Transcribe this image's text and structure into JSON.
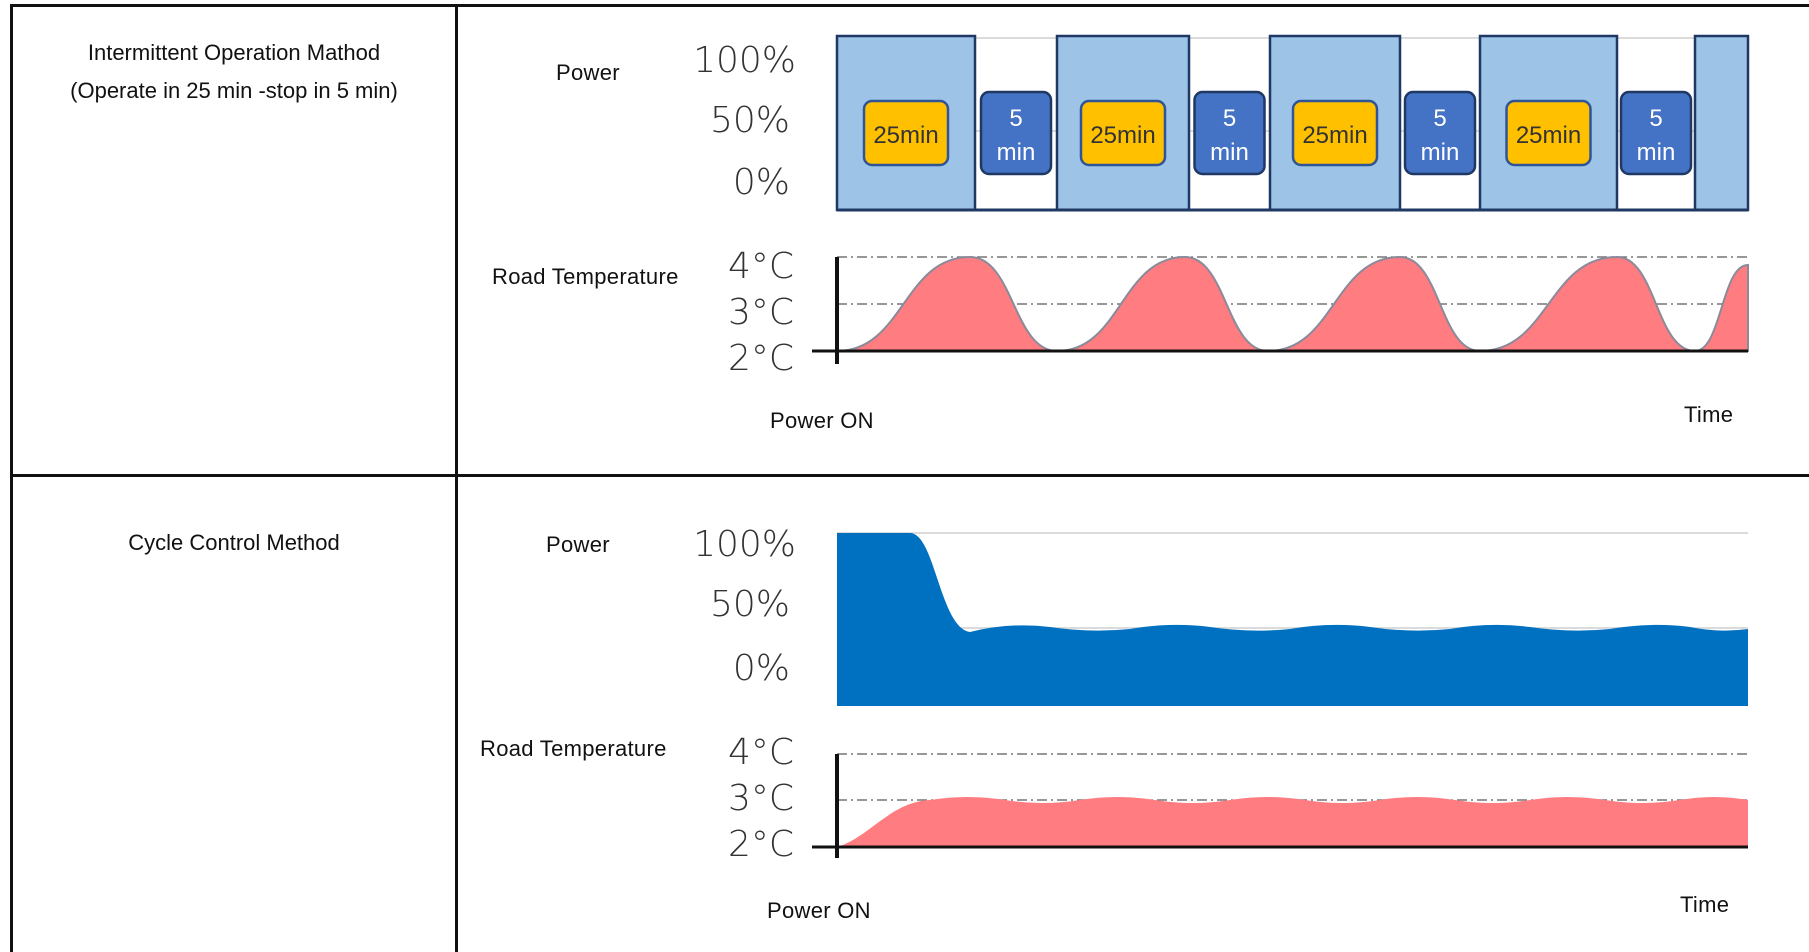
{
  "rows": [
    {
      "title_line1": "Intermittent  Operation Mathod",
      "title_line2": "(Operate in   25 min -stop  in  5 min)",
      "power_label": "Power",
      "road_temp_label": "Road  Temperature",
      "power_on_label": "Power  ON",
      "time_label": "Time"
    },
    {
      "title_line1": "Cycle  Control  Method",
      "power_label": "Power",
      "road_temp_label": "Road  Temperature",
      "power_on_label": "Power  ON",
      "time_label": "Time"
    }
  ],
  "power_ticks": [
    "100%",
    "50%",
    "0%"
  ],
  "temp_ticks": [
    "4°C",
    "3°C",
    "2°C"
  ],
  "segment_labels": {
    "operate": "25min",
    "stop": [
      "5",
      "min"
    ]
  },
  "colors": {
    "power_block": "#9DC3E6",
    "power_fill": "#0070C0",
    "operate_box": "#FFC000",
    "stop_box": "#4472C4",
    "temperature_fill": "#FF7C80"
  },
  "chart_data": [
    {
      "type": "area",
      "name": "intermittent-power",
      "yticks": [
        "0%",
        "50%",
        "100%"
      ],
      "segments": [
        {
          "state": "on",
          "label": "25min",
          "power_percent": 100
        },
        {
          "state": "off",
          "label": "5 min",
          "power_percent": 0
        },
        {
          "state": "on",
          "label": "25min",
          "power_percent": 100
        },
        {
          "state": "off",
          "label": "5 min",
          "power_percent": 0
        },
        {
          "state": "on",
          "label": "25min",
          "power_percent": 100
        },
        {
          "state": "off",
          "label": "5 min",
          "power_percent": 0
        },
        {
          "state": "on",
          "label": "25min",
          "power_percent": 100
        },
        {
          "state": "off",
          "label": "5 min",
          "power_percent": 0
        },
        {
          "state": "on",
          "power_percent": 100
        }
      ]
    },
    {
      "type": "area",
      "name": "intermittent-road-temperature",
      "yticks": [
        "2°C",
        "3°C",
        "4°C"
      ],
      "xlabel": "Time",
      "x_start_label": "Power  ON",
      "pattern": "oscillates 2°C–4°C, peaks at end of each 25 min run, troughs at end of each 5 min stop",
      "peaks_c": [
        4,
        4,
        4,
        4
      ],
      "troughs_c": [
        2,
        2,
        2,
        2
      ]
    },
    {
      "type": "area",
      "name": "cycle-control-power",
      "yticks": [
        "0%",
        "50%",
        "100%"
      ],
      "start_percent": 100,
      "steady_percent": 50
    },
    {
      "type": "area",
      "name": "cycle-control-road-temperature",
      "yticks": [
        "2°C",
        "3°C",
        "4°C"
      ],
      "xlabel": "Time",
      "x_start_label": "Power  ON",
      "start_c": 2,
      "steady_c": 3
    }
  ]
}
